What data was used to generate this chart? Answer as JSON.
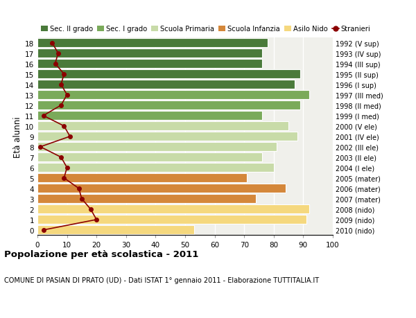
{
  "ages": [
    0,
    1,
    2,
    3,
    4,
    5,
    6,
    7,
    8,
    9,
    10,
    11,
    12,
    13,
    14,
    15,
    16,
    17,
    18
  ],
  "bar_values": [
    53,
    91,
    92,
    74,
    84,
    71,
    80,
    76,
    81,
    88,
    85,
    76,
    89,
    92,
    87,
    89,
    76,
    76,
    78
  ],
  "bar_colors": [
    "#f5d87e",
    "#f5d87e",
    "#f5d87e",
    "#d4873a",
    "#d4873a",
    "#d4873a",
    "#c8dba8",
    "#c8dba8",
    "#c8dba8",
    "#c8dba8",
    "#c8dba8",
    "#7aaa5a",
    "#7aaa5a",
    "#7aaa5a",
    "#4a7a3a",
    "#4a7a3a",
    "#4a7a3a",
    "#4a7a3a",
    "#4a7a3a"
  ],
  "stranieri_values": [
    2,
    20,
    18,
    15,
    14,
    9,
    10,
    8,
    1,
    11,
    9,
    2,
    8,
    10,
    8,
    9,
    6,
    7,
    5
  ],
  "right_labels": [
    "2010 (nido)",
    "2009 (nido)",
    "2008 (nido)",
    "2007 (mater)",
    "2006 (mater)",
    "2005 (mater)",
    "2004 (I ele)",
    "2003 (II ele)",
    "2002 (III ele)",
    "2001 (IV ele)",
    "2000 (V ele)",
    "1999 (I med)",
    "1998 (II med)",
    "1997 (III med)",
    "1996 (I sup)",
    "1995 (II sup)",
    "1994 (III sup)",
    "1993 (IV sup)",
    "1992 (V sup)"
  ],
  "legend_labels": [
    "Sec. II grado",
    "Sec. I grado",
    "Scuola Primaria",
    "Scuola Infanzia",
    "Asilo Nido",
    "Stranieri"
  ],
  "legend_colors": [
    "#4a7a3a",
    "#7aaa5a",
    "#c8dba8",
    "#d4873a",
    "#f5d87e",
    "#8b0000"
  ],
  "ylabel_left": "Età alunni",
  "title": "Popolazione per età scolastica - 2011",
  "subtitle": "COMUNE DI PASIAN DI PRATO (UD) - Dati ISTAT 1° gennaio 2011 - Elaborazione TUTTITALIA.IT",
  "xlim": [
    0,
    100
  ],
  "xticks": [
    0,
    10,
    20,
    30,
    40,
    50,
    60,
    70,
    80,
    90,
    100
  ],
  "bg_color": "#ffffff",
  "plot_bg_color": "#f0f0eb"
}
